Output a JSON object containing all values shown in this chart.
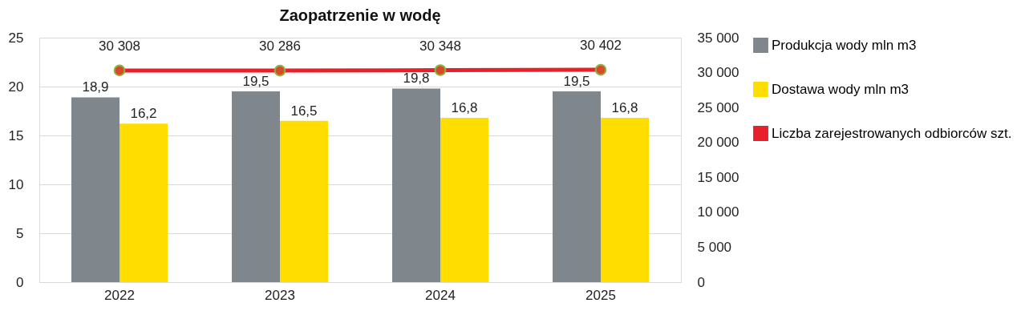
{
  "chart_data": {
    "type": "bar",
    "title": "Zaopatrzenie  w wodę",
    "categories": [
      "2022",
      "2023",
      "2024",
      "2025"
    ],
    "series": [
      {
        "name": "Produkcja wody mln m3",
        "color": "#7f868c",
        "values": [
          18.9,
          19.5,
          19.8,
          19.5
        ],
        "value_labels": [
          "18,9",
          "19,5",
          "19,8",
          "19,5"
        ]
      },
      {
        "name": "Dostawa wody  mln m3",
        "color": "#ffdd00",
        "values": [
          16.2,
          16.5,
          16.8,
          16.8
        ],
        "value_labels": [
          "16,2",
          "16,5",
          "16,8",
          "16,8"
        ]
      },
      {
        "name": "Liczba zarejestrowanych odbiorców  szt.",
        "type": "line",
        "axis": "y2",
        "color": "#e8202a",
        "marker": "circle",
        "values": [
          30308,
          30286,
          30348,
          30402
        ],
        "value_labels": [
          "30 308",
          "30 286",
          "30 348",
          "30 402"
        ]
      }
    ],
    "ylim": [
      0,
      25
    ],
    "yticks": [
      0,
      5,
      10,
      15,
      20,
      25
    ],
    "y2lim": [
      0,
      35000
    ],
    "y2ticks": [
      0,
      {
        "value": 5000,
        "label": "5 000"
      },
      {
        "value": 10000,
        "label": "10 000"
      },
      {
        "value": 15000,
        "label": "15 000"
      },
      {
        "value": 20000,
        "label": "20 000"
      },
      {
        "value": 25000,
        "label": "25 000"
      },
      {
        "value": 30000,
        "label": "30 000"
      },
      {
        "value": 35000,
        "label": "35 000"
      }
    ],
    "grid": "y",
    "legend": "right"
  }
}
